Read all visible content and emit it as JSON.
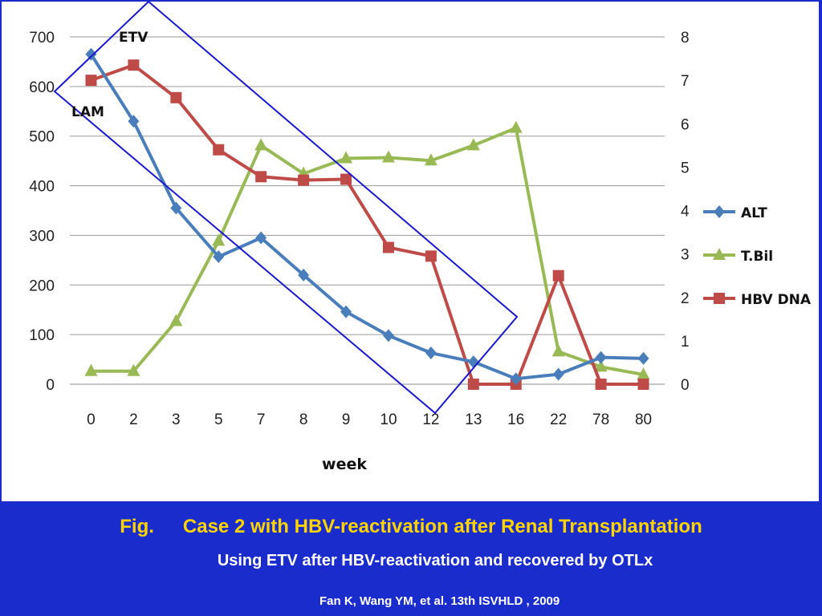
{
  "caption": {
    "fig_label": "Fig.",
    "title": "Case 2 with HBV-reactivation after Renal Transplantation",
    "subtitle": "Using ETV after HBV-reactivation and recovered by OTLx",
    "citation": "Fan K, Wang YM, et al. 13th ISVHLD , 2009"
  },
  "colors": {
    "background": "#1a2ccc",
    "caption_title": "#ffd400",
    "caption_text": "#ffffff",
    "annotation_box": "#1a1acc"
  },
  "chart_data": {
    "type": "line",
    "xlabel": "week",
    "categories": [
      "0",
      "2",
      "3",
      "5",
      "7",
      "8",
      "9",
      "10",
      "12",
      "13",
      "16",
      "22",
      "78",
      "80"
    ],
    "y_left": {
      "ticks": [
        "0",
        "100",
        "200",
        "300",
        "400",
        "500",
        "600",
        "700"
      ],
      "range": [
        0,
        700
      ]
    },
    "y_right": {
      "ticks": [
        "0",
        "1",
        "2",
        "3",
        "4",
        "5",
        "6",
        "7",
        "8"
      ],
      "range": [
        0,
        8
      ]
    },
    "grid": true,
    "legend_position": "right",
    "annotations": [
      "ETV",
      "LAM"
    ],
    "series": [
      {
        "name": "ALT",
        "axis": "left",
        "color": "#4a7ebb",
        "marker": "diamond",
        "values": [
          665,
          530,
          355,
          257,
          295,
          220,
          146,
          98,
          63,
          45,
          11,
          20,
          54,
          52
        ]
      },
      {
        "name": "T.Bil",
        "axis": "right",
        "color": "#98b954",
        "marker": "triangle",
        "values": [
          0.3,
          0.3,
          1.45,
          3.3,
          5.5,
          4.85,
          5.2,
          5.22,
          5.15,
          5.5,
          5.9,
          0.75,
          0.4,
          0.22
        ]
      },
      {
        "name": "HBV DNA",
        "axis": "right",
        "color": "#be4b48",
        "marker": "square",
        "values": [
          7.0,
          7.35,
          6.6,
          5.4,
          4.78,
          4.7,
          4.72,
          3.15,
          2.95,
          0,
          0,
          2.5,
          0,
          0
        ]
      }
    ]
  }
}
